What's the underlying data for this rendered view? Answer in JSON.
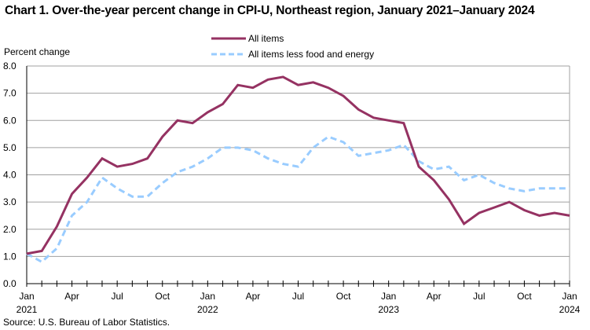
{
  "title": "Chart 1. Over-the-year percent change in CPI-U, Northeast region, January 2021–January 2024",
  "source": "Source: U.S. Bureau of Labor Statistics.",
  "colors": {
    "all_items": "#953262",
    "core": "#99ccff",
    "grid": "#a0a0a0",
    "axis": "#000000"
  },
  "chart_data": {
    "type": "line",
    "title": "Chart 1. Over-the-year percent change in CPI-U, Northeast region, January 2021–January 2024",
    "ylabel": "Percent change",
    "xlabel": "",
    "ylim": [
      0,
      8
    ],
    "yticks": [
      "0.0",
      "1.0",
      "2.0",
      "3.0",
      "4.0",
      "5.0",
      "6.0",
      "7.0",
      "8.0"
    ],
    "grid": true,
    "legend_placement": "top-center",
    "x": [
      "Jan 2021",
      "Feb 2021",
      "Mar 2021",
      "Apr 2021",
      "May 2021",
      "Jun 2021",
      "Jul 2021",
      "Aug 2021",
      "Sep 2021",
      "Oct 2021",
      "Nov 2021",
      "Dec 2021",
      "Jan 2022",
      "Feb 2022",
      "Mar 2022",
      "Apr 2022",
      "May 2022",
      "Jun 2022",
      "Jul 2022",
      "Aug 2022",
      "Sep 2022",
      "Oct 2022",
      "Nov 2022",
      "Dec 2022",
      "Jan 2023",
      "Feb 2023",
      "Mar 2023",
      "Apr 2023",
      "May 2023",
      "Jun 2023",
      "Jul 2023",
      "Aug 2023",
      "Sep 2023",
      "Oct 2023",
      "Nov 2023",
      "Dec 2023",
      "Jan 2024"
    ],
    "xtick_labels": [
      {
        "month": "Jan",
        "year": "2021",
        "index": 0
      },
      {
        "month": "Apr",
        "year": "",
        "index": 3
      },
      {
        "month": "Jul",
        "year": "",
        "index": 6
      },
      {
        "month": "Oct",
        "year": "",
        "index": 9
      },
      {
        "month": "Jan",
        "year": "2022",
        "index": 12
      },
      {
        "month": "Apr",
        "year": "",
        "index": 15
      },
      {
        "month": "Jul",
        "year": "",
        "index": 18
      },
      {
        "month": "Oct",
        "year": "",
        "index": 21
      },
      {
        "month": "Jan",
        "year": "2023",
        "index": 24
      },
      {
        "month": "Apr",
        "year": "",
        "index": 27
      },
      {
        "month": "Jul",
        "year": "",
        "index": 30
      },
      {
        "month": "Oct",
        "year": "",
        "index": 33
      },
      {
        "month": "Jan",
        "year": "2024",
        "index": 36
      }
    ],
    "series": [
      {
        "name": "All items",
        "style": "solid",
        "values": [
          1.1,
          1.2,
          2.1,
          3.3,
          3.9,
          4.6,
          4.3,
          4.4,
          4.6,
          5.4,
          6.0,
          5.9,
          6.3,
          6.6,
          7.3,
          7.2,
          7.5,
          7.6,
          7.3,
          7.4,
          7.2,
          6.9,
          6.4,
          6.1,
          6.0,
          5.9,
          4.3,
          3.8,
          3.1,
          2.2,
          2.6,
          2.8,
          3.0,
          2.7,
          2.5,
          2.6,
          2.5
        ]
      },
      {
        "name": "All items less food and energy",
        "style": "dashed",
        "values": [
          1.1,
          0.8,
          1.3,
          2.5,
          3.0,
          3.9,
          3.5,
          3.2,
          3.2,
          3.7,
          4.1,
          4.3,
          4.6,
          5.0,
          5.0,
          4.9,
          4.6,
          4.4,
          4.3,
          5.0,
          5.4,
          5.2,
          4.7,
          4.8,
          4.9,
          5.1,
          4.5,
          4.2,
          4.3,
          3.8,
          4.0,
          3.7,
          3.5,
          3.4,
          3.5,
          3.5,
          3.5
        ]
      }
    ]
  }
}
